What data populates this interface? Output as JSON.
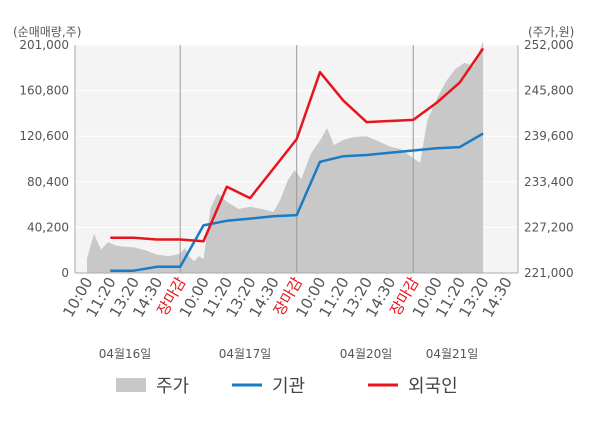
{
  "chart_data": {
    "type": "line",
    "left_axis_unit": "(순매매량,주)",
    "right_axis_unit": "(주가,원)",
    "left_ticks": [
      "201,000",
      "160,800",
      "120,600",
      "80,400",
      "40,200",
      "0"
    ],
    "left_tick_values": [
      201000,
      160800,
      120600,
      80400,
      40200,
      0
    ],
    "right_ticks": [
      "252,000",
      "245,800",
      "239,600",
      "233,400",
      "227,200",
      "221,000"
    ],
    "right_tick_values": [
      252000,
      245800,
      239600,
      233400,
      227200,
      221000
    ],
    "ylim_left": [
      0,
      201000
    ],
    "ylim_right": [
      221000,
      252000
    ],
    "x_ticks": [
      {
        "label": "10:00",
        "close": false
      },
      {
        "label": "11:20",
        "close": false
      },
      {
        "label": "13:20",
        "close": false
      },
      {
        "label": "14:30",
        "close": false
      },
      {
        "label": "장마감",
        "close": true
      },
      {
        "label": "10:00",
        "close": false
      },
      {
        "label": "11:20",
        "close": false
      },
      {
        "label": "13:20",
        "close": false
      },
      {
        "label": "14:30",
        "close": false
      },
      {
        "label": "장마감",
        "close": true
      },
      {
        "label": "10:00",
        "close": false
      },
      {
        "label": "11:20",
        "close": false
      },
      {
        "label": "13:20",
        "close": false
      },
      {
        "label": "14:30",
        "close": false
      },
      {
        "label": "장마감",
        "close": true
      },
      {
        "label": "10:00",
        "close": false
      },
      {
        "label": "11:20",
        "close": false
      },
      {
        "label": "13:20",
        "close": false
      },
      {
        "label": "14:30",
        "close": false
      }
    ],
    "dates": [
      "04월16일",
      "04월17일",
      "04월20일",
      "04월21일"
    ],
    "legend": [
      {
        "name": "주가",
        "color": "#c8c8c8",
        "shape": "area"
      },
      {
        "name": "기관",
        "color": "#1a7cc4",
        "shape": "line"
      },
      {
        "name": "외국인",
        "color": "#e8141c",
        "shape": "line"
      }
    ],
    "series": [
      {
        "name": "기관",
        "color": "#1a7cc4",
        "x": [
          1,
          2,
          3,
          4,
          5,
          6,
          7,
          8,
          9,
          10,
          11,
          12,
          13,
          14,
          15,
          16,
          17
        ],
        "values": [
          2000,
          2000,
          5500,
          5500,
          42000,
          46000,
          48000,
          50000,
          51000,
          98000,
          103000,
          104000,
          106000,
          108000,
          110000,
          111000,
          123000
        ]
      },
      {
        "name": "외국인",
        "color": "#e8141c",
        "x": [
          1,
          2,
          3,
          4,
          5,
          6,
          7,
          8,
          9,
          10,
          11,
          12,
          13,
          14,
          15,
          16,
          17
        ],
        "values": [
          31000,
          31000,
          29500,
          29500,
          28000,
          76000,
          66000,
          92000,
          118000,
          177000,
          152000,
          133000,
          134000,
          135000,
          150000,
          168000,
          198000
        ]
      },
      {
        "name": "주가",
        "color": "#c8c8c8",
        "axis": "right",
        "x": [
          0,
          0.3,
          0.6,
          0.9,
          1.2,
          1.5,
          2.0,
          2.5,
          3.0,
          3.5,
          4.0,
          4.2,
          4.4,
          4.6,
          4.8,
          5.0,
          5.3,
          5.6,
          6.0,
          6.5,
          7.0,
          7.5,
          8.0,
          8.3,
          8.6,
          8.9,
          9.2,
          9.6,
          10.0,
          10.3,
          10.6,
          11.0,
          11.5,
          12.0,
          12.5,
          13.0,
          13.5,
          14.0,
          14.3,
          14.6,
          15.0,
          15.4,
          15.8,
          16.2,
          16.6,
          17.0
        ],
        "values": [
          223000,
          226300,
          224200,
          225200,
          224800,
          224600,
          224500,
          224100,
          223500,
          223300,
          223600,
          224400,
          223200,
          222600,
          223300,
          222900,
          229800,
          231800,
          230700,
          229700,
          230000,
          229700,
          229300,
          231000,
          233500,
          235000,
          233800,
          237200,
          239000,
          240700,
          238400,
          239100,
          239500,
          239600,
          238900,
          238200,
          237800,
          236600,
          236000,
          241700,
          244600,
          247000,
          248700,
          249600,
          249100,
          252500
        ]
      }
    ]
  }
}
